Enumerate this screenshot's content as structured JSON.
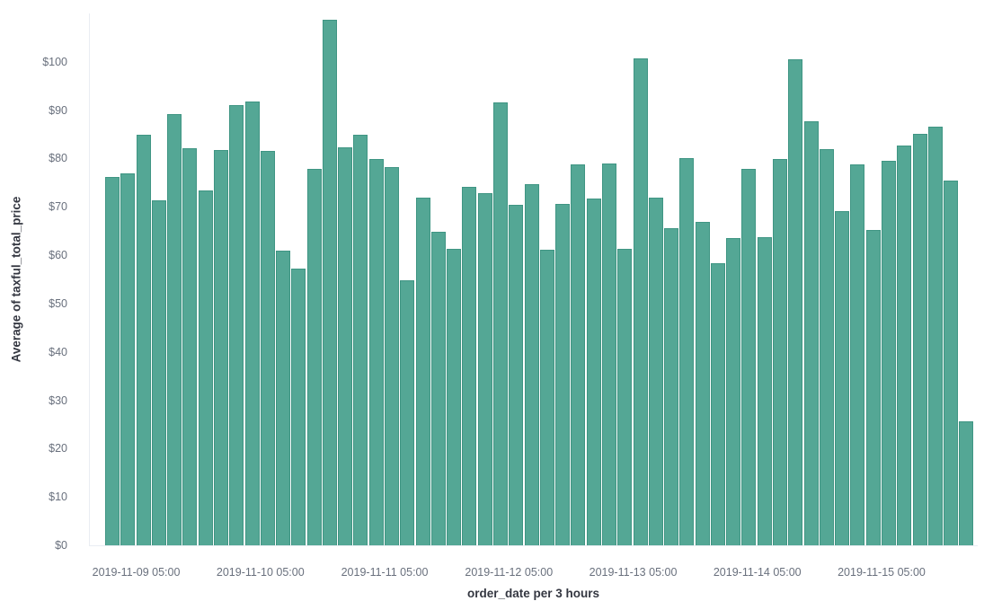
{
  "chart_data": {
    "type": "bar",
    "title": "",
    "xlabel": "order_date per 3 hours",
    "ylabel": "Average of taxful_total_price",
    "ylim": [
      0,
      110
    ],
    "grid": false,
    "legend_position": "none",
    "bar_color": "#54a795",
    "bar_border_color": "#3f9583",
    "axis_line_color": "#e9edf3",
    "tick_label_color": "#69707d",
    "axis_title_color": "#343741",
    "y_ticks": [
      0,
      10,
      20,
      30,
      40,
      50,
      60,
      70,
      80,
      90,
      100
    ],
    "y_tick_labels": [
      "$0",
      "$10",
      "$20",
      "$30",
      "$40",
      "$50",
      "$60",
      "$70",
      "$80",
      "$90",
      "$100"
    ],
    "x_tick_labels": [
      "2019-11-09 05:00",
      "2019-11-10 05:00",
      "2019-11-11 05:00",
      "2019-11-12 05:00",
      "2019-11-13 05:00",
      "2019-11-14 05:00",
      "2019-11-15 05:00"
    ],
    "first_tick_bar_index": 2,
    "bars_per_tick": 8,
    "values": [
      76.2,
      77.0,
      85.0,
      71.3,
      89.2,
      82.2,
      73.4,
      81.7,
      91.1,
      91.8,
      81.6,
      61.0,
      57.3,
      77.9,
      108.7,
      82.4,
      85.0,
      79.9,
      78.2,
      54.9,
      72.0,
      64.9,
      61.4,
      74.1,
      72.9,
      91.6,
      70.4,
      74.7,
      61.2,
      70.7,
      78.8,
      71.7,
      79.0,
      61.4,
      100.7,
      71.9,
      65.6,
      80.1,
      66.9,
      58.4,
      63.6,
      77.9,
      63.8,
      79.9,
      100.6,
      87.7,
      82.0,
      69.2,
      78.8,
      65.3,
      79.6,
      82.7,
      85.1,
      86.6,
      75.5,
      25.7
    ]
  }
}
